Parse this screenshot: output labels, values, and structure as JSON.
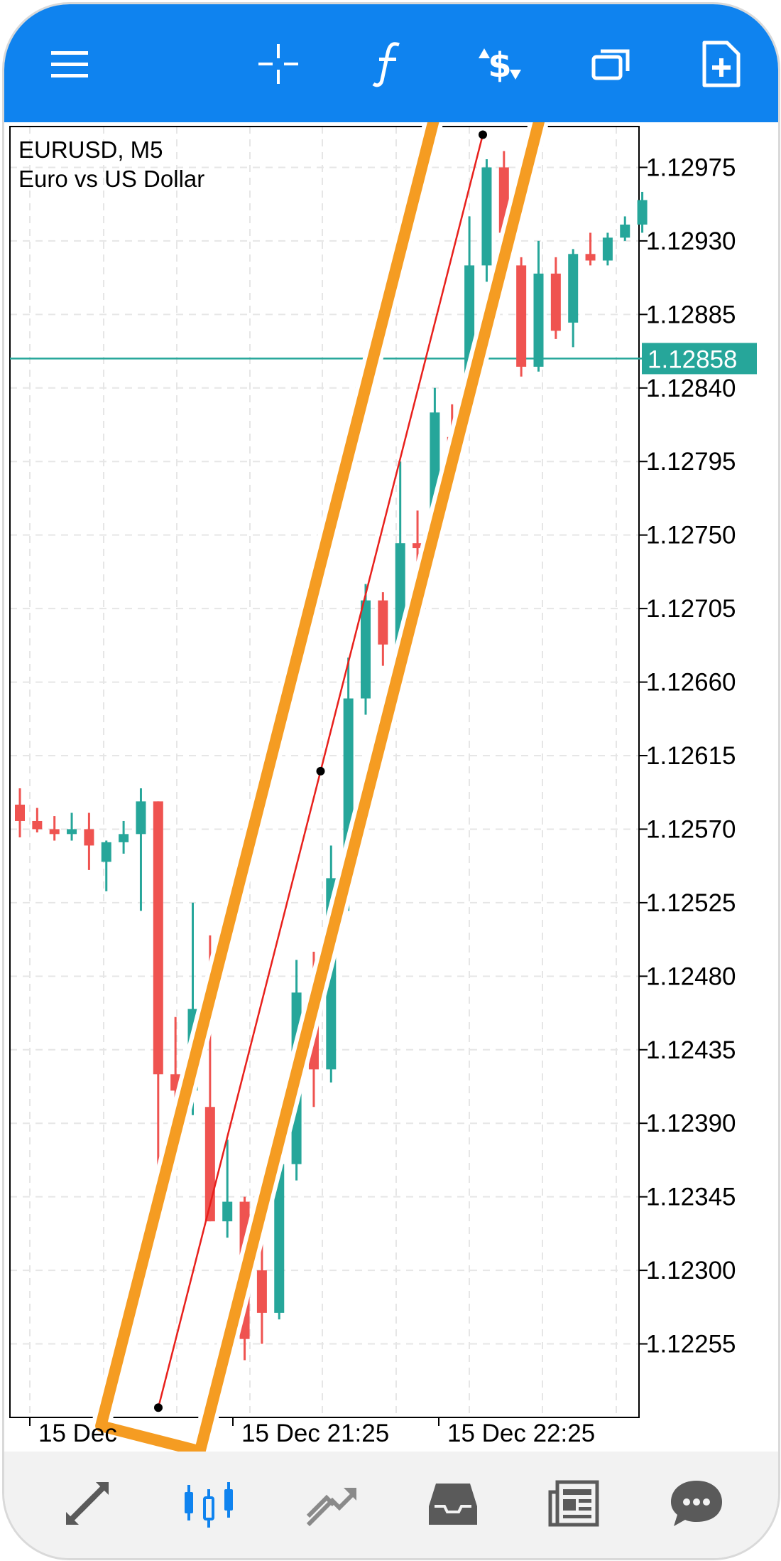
{
  "toolbar": {
    "icons": [
      "menu-icon",
      "crosshair-icon",
      "function-icon",
      "trade-icon",
      "windows-icon",
      "add-document-icon"
    ]
  },
  "chart": {
    "symbol": "EURUSD, M5",
    "description": "Euro vs US Dollar",
    "current_price": "1.12858",
    "price_line_color": "#26a69a",
    "bull_color": "#26a69a",
    "bear_color": "#ef5350",
    "y_ticks": [
      "1.12975",
      "1.12930",
      "1.12885",
      "1.12840",
      "1.12795",
      "1.12750",
      "1.12705",
      "1.12660",
      "1.12615",
      "1.12570",
      "1.12525",
      "1.12480",
      "1.12435",
      "1.12390",
      "1.12345",
      "1.12300",
      "1.12255"
    ],
    "x_ticks": [
      "15 Dec",
      "15 Dec 21:25",
      "15 Dec 22:25"
    ]
  },
  "chart_data": {
    "type": "candlestick",
    "series_names": [],
    "ylim": [
      1.1221,
      1.13
    ],
    "y_ticks": [
      1.12975,
      1.1293,
      1.12885,
      1.1284,
      1.12795,
      1.1275,
      1.12705,
      1.1266,
      1.12615,
      1.1257,
      1.12525,
      1.1248,
      1.12435,
      1.1239,
      1.12345,
      1.123,
      1.12255
    ],
    "candles": [
      {
        "o": 1.12585,
        "h": 1.12595,
        "l": 1.12565,
        "c": 1.12575
      },
      {
        "o": 1.12575,
        "h": 1.12583,
        "l": 1.12568,
        "c": 1.1257
      },
      {
        "o": 1.1257,
        "h": 1.12578,
        "l": 1.12563,
        "c": 1.12567
      },
      {
        "o": 1.12567,
        "h": 1.1258,
        "l": 1.12563,
        "c": 1.1257
      },
      {
        "o": 1.1257,
        "h": 1.1258,
        "l": 1.12545,
        "c": 1.1256
      },
      {
        "o": 1.1255,
        "h": 1.12563,
        "l": 1.12532,
        "c": 1.12562
      },
      {
        "o": 1.12562,
        "h": 1.12575,
        "l": 1.12555,
        "c": 1.12567
      },
      {
        "o": 1.12567,
        "h": 1.12595,
        "l": 1.1252,
        "c": 1.12587
      },
      {
        "o": 1.12587,
        "h": 1.12587,
        "l": 1.1234,
        "c": 1.1242
      },
      {
        "o": 1.1242,
        "h": 1.12455,
        "l": 1.12385,
        "c": 1.1241
      },
      {
        "o": 1.1241,
        "h": 1.12525,
        "l": 1.12395,
        "c": 1.1246
      },
      {
        "o": 1.124,
        "h": 1.12505,
        "l": 1.1233,
        "c": 1.1233
      },
      {
        "o": 1.1233,
        "h": 1.1238,
        "l": 1.1232,
        "c": 1.12342
      },
      {
        "o": 1.12342,
        "h": 1.12345,
        "l": 1.12245,
        "c": 1.12258
      },
      {
        "o": 1.123,
        "h": 1.1234,
        "l": 1.12255,
        "c": 1.12274
      },
      {
        "o": 1.12274,
        "h": 1.12385,
        "l": 1.1227,
        "c": 1.12365
      },
      {
        "o": 1.12365,
        "h": 1.1249,
        "l": 1.12355,
        "c": 1.1247
      },
      {
        "o": 1.1247,
        "h": 1.12495,
        "l": 1.124,
        "c": 1.12423
      },
      {
        "o": 1.12423,
        "h": 1.1256,
        "l": 1.12415,
        "c": 1.1254
      },
      {
        "o": 1.1254,
        "h": 1.12675,
        "l": 1.1252,
        "c": 1.1265
      },
      {
        "o": 1.1265,
        "h": 1.1272,
        "l": 1.1264,
        "c": 1.1271
      },
      {
        "o": 1.1271,
        "h": 1.12715,
        "l": 1.1267,
        "c": 1.12683
      },
      {
        "o": 1.12683,
        "h": 1.12795,
        "l": 1.12675,
        "c": 1.12745
      },
      {
        "o": 1.12745,
        "h": 1.12765,
        "l": 1.1273,
        "c": 1.12742
      },
      {
        "o": 1.12745,
        "h": 1.1284,
        "l": 1.12735,
        "c": 1.12825
      },
      {
        "o": 1.1281,
        "h": 1.1283,
        "l": 1.12782,
        "c": 1.12795
      },
      {
        "o": 1.1284,
        "h": 1.12945,
        "l": 1.1283,
        "c": 1.12915
      },
      {
        "o": 1.12915,
        "h": 1.1298,
        "l": 1.12905,
        "c": 1.12975
      },
      {
        "o": 1.12975,
        "h": 1.12985,
        "l": 1.12935,
        "c": 1.12935
      },
      {
        "o": 1.12915,
        "h": 1.1292,
        "l": 1.12847,
        "c": 1.12853
      },
      {
        "o": 1.12853,
        "h": 1.1293,
        "l": 1.1285,
        "c": 1.1291
      },
      {
        "o": 1.1291,
        "h": 1.1292,
        "l": 1.1287,
        "c": 1.12875
      },
      {
        "o": 1.1288,
        "h": 1.12925,
        "l": 1.12865,
        "c": 1.12922
      },
      {
        "o": 1.12922,
        "h": 1.12935,
        "l": 1.12915,
        "c": 1.12918
      },
      {
        "o": 1.12918,
        "h": 1.12935,
        "l": 1.12915,
        "c": 1.12932
      },
      {
        "o": 1.12932,
        "h": 1.12945,
        "l": 1.1293,
        "c": 1.1294
      },
      {
        "o": 1.1294,
        "h": 1.1296,
        "l": 1.12935,
        "c": 1.12955
      }
    ],
    "trend_line": {
      "from": 1.12216,
      "to": 1.12995
    },
    "current_price": 1.12858
  },
  "bottom_nav": {
    "items": [
      "quotes-icon",
      "chart-icon",
      "trade-icon",
      "history-icon",
      "news-icon",
      "chat-icon"
    ]
  }
}
